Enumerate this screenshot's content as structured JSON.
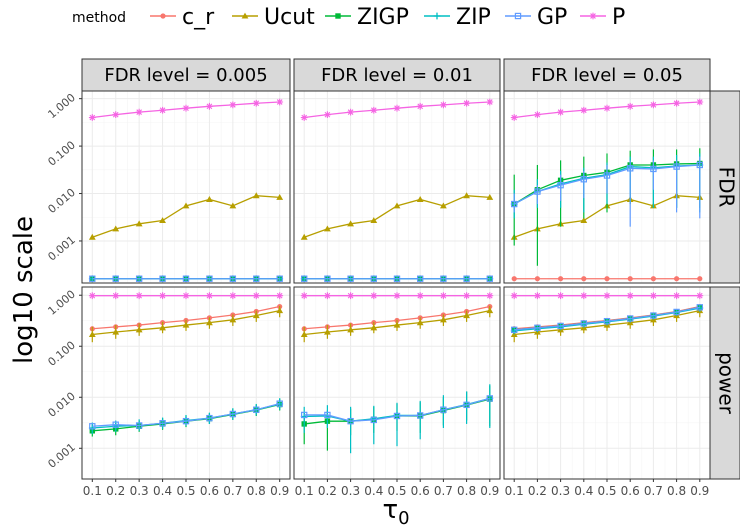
{
  "chart_data": {
    "type": "line",
    "ylabel": "log10 scale",
    "xlabel_base": "τ",
    "xlabel_sub": "0",
    "legend": {
      "title": "method",
      "position": "top"
    },
    "x": [
      0.1,
      0.2,
      0.3,
      0.4,
      0.5,
      0.6,
      0.7,
      0.8,
      0.9
    ],
    "x_tick_labels": [
      "0.1",
      "0.2",
      "0.3",
      "0.4",
      "0.5",
      "0.6",
      "0.7",
      "0.8",
      "0.9"
    ],
    "y_scale": "log10",
    "y_tick_labels": [
      "0.001",
      "0.010",
      "0.100",
      "1.000"
    ],
    "y_ticks": [
      0.001,
      0.01,
      0.1,
      1
    ],
    "row_strips": [
      "FDR",
      "power"
    ],
    "col_strips": [
      "FDR level = 0.005",
      "FDR level = 0.01",
      "FDR level = 0.05"
    ],
    "fdr_ylim": [
      0.00013,
      1.45
    ],
    "power_ylim": [
      0.00025,
      1.45
    ],
    "series": [
      {
        "name": "c_r",
        "color": "#F8766D",
        "marker": "circle"
      },
      {
        "name": "Ucut",
        "color": "#B79F00",
        "marker": "triangle"
      },
      {
        "name": "ZIGP",
        "color": "#00BA38",
        "marker": "square"
      },
      {
        "name": "ZIP",
        "color": "#00BFC4",
        "marker": "plus"
      },
      {
        "name": "GP",
        "color": "#619CFF",
        "marker": "square-open"
      },
      {
        "name": "P",
        "color": "#F564E3",
        "marker": "asterisk"
      }
    ],
    "panels": [
      {
        "row": "FDR",
        "col": "FDR level = 0.005",
        "series": {
          "c_r": {
            "values": [
              0.00016,
              0.00016,
              0.00016,
              0.00016,
              0.00016,
              0.00016,
              0.00016,
              0.00016,
              0.00016
            ]
          },
          "Ucut": {
            "values": [
              0.0012,
              0.0018,
              0.0023,
              0.0027,
              0.0055,
              0.0075,
              0.0055,
              0.009,
              0.0083
            ]
          },
          "ZIGP": {
            "values": [
              0.00016,
              0.00016,
              0.00016,
              0.00016,
              0.00016,
              0.00016,
              0.00016,
              0.00016,
              0.00016
            ]
          },
          "ZIP": {
            "values": [
              0.00016,
              0.00016,
              0.00016,
              0.00016,
              0.00016,
              0.00016,
              0.00016,
              0.00016,
              0.00016
            ]
          },
          "GP": {
            "values": [
              0.00016,
              0.00016,
              0.00016,
              0.00016,
              0.00016,
              0.00016,
              0.00016,
              0.00016,
              0.00016
            ]
          },
          "P": {
            "values": [
              0.4,
              0.46,
              0.52,
              0.57,
              0.63,
              0.69,
              0.74,
              0.8,
              0.85
            ]
          }
        }
      },
      {
        "row": "FDR",
        "col": "FDR level = 0.01",
        "series": {
          "c_r": {
            "values": [
              0.00016,
              0.00016,
              0.00016,
              0.00016,
              0.00016,
              0.00016,
              0.00016,
              0.00016,
              0.00016
            ]
          },
          "Ucut": {
            "values": [
              0.0012,
              0.0018,
              0.0023,
              0.0027,
              0.0055,
              0.0075,
              0.0055,
              0.009,
              0.0083
            ]
          },
          "ZIGP": {
            "values": [
              0.00016,
              0.00016,
              0.00016,
              0.00016,
              0.00016,
              0.00016,
              0.00016,
              0.00016,
              0.00016
            ]
          },
          "ZIP": {
            "values": [
              0.00016,
              0.00016,
              0.00016,
              0.00016,
              0.00016,
              0.00016,
              0.00016,
              0.00016,
              0.00016
            ]
          },
          "GP": {
            "values": [
              0.00016,
              0.00016,
              0.00016,
              0.00016,
              0.00016,
              0.00016,
              0.00016,
              0.00016,
              0.00016
            ]
          },
          "P": {
            "values": [
              0.4,
              0.46,
              0.52,
              0.57,
              0.63,
              0.69,
              0.74,
              0.8,
              0.85
            ]
          }
        }
      },
      {
        "row": "FDR",
        "col": "FDR level = 0.05",
        "series": {
          "c_r": {
            "values": [
              0.00016,
              0.00016,
              0.00016,
              0.00016,
              0.00016,
              0.00016,
              0.00016,
              0.00016,
              0.00016
            ]
          },
          "Ucut": {
            "values": [
              0.0012,
              0.0018,
              0.0023,
              0.0027,
              0.0055,
              0.0075,
              0.0055,
              0.009,
              0.0083
            ]
          },
          "ZIGP": {
            "values": [
              0.006,
              0.012,
              0.019,
              0.024,
              0.028,
              0.04,
              0.04,
              0.042,
              0.043
            ],
            "err": [
              [
                0.0008,
                0.025
              ],
              [
                0.0003,
                0.04
              ],
              [
                0.002,
                0.05
              ],
              [
                0.003,
                0.06
              ],
              [
                0.004,
                0.07
              ],
              [
                0.006,
                0.08
              ],
              [
                0.005,
                0.085
              ],
              [
                0.005,
                0.085
              ],
              [
                0.005,
                0.09
              ]
            ]
          },
          "ZIP": {
            "values": [
              0.006,
              0.011,
              0.016,
              0.021,
              0.025,
              0.037,
              0.035,
              0.038,
              0.04
            ],
            "err": [
              [
                0.003,
                0.012
              ],
              [
                0.005,
                0.02
              ],
              [
                0.005,
                0.03
              ],
              [
                0.004,
                0.035
              ],
              [
                0.006,
                0.045
              ],
              [
                0.006,
                0.06
              ],
              [
                0.005,
                0.06
              ],
              [
                0.005,
                0.065
              ],
              [
                0.004,
                0.07
              ]
            ]
          },
          "GP": {
            "values": [
              0.006,
              0.011,
              0.015,
              0.02,
              0.024,
              0.034,
              0.033,
              0.037,
              0.04
            ],
            "err": [
              [
                0.004,
                0.01
              ],
              [
                0.006,
                0.015
              ],
              [
                0.007,
                0.025
              ],
              [
                0.008,
                0.03
              ],
              [
                0.01,
                0.04
              ],
              [
                0.002,
                0.05
              ],
              [
                0.012,
                0.05
              ],
              [
                0.004,
                0.05
              ],
              [
                0.003,
                0.06
              ]
            ]
          },
          "P": {
            "values": [
              0.4,
              0.46,
              0.52,
              0.57,
              0.63,
              0.69,
              0.74,
              0.8,
              0.85
            ]
          }
        }
      },
      {
        "row": "power",
        "col": "FDR level = 0.005",
        "series": {
          "c_r": {
            "values": [
              0.22,
              0.24,
              0.26,
              0.29,
              0.32,
              0.36,
              0.41,
              0.48,
              0.6
            ]
          },
          "Ucut": {
            "values": [
              0.17,
              0.19,
              0.21,
              0.23,
              0.26,
              0.29,
              0.33,
              0.4,
              0.5
            ],
            "err": [
              [
                0.12,
                0.24
              ],
              [
                0.14,
                0.26
              ],
              [
                0.16,
                0.28
              ],
              [
                0.18,
                0.3
              ],
              [
                0.2,
                0.33
              ],
              [
                0.22,
                0.37
              ],
              [
                0.25,
                0.42
              ],
              [
                0.3,
                0.5
              ],
              [
                0.37,
                0.62
              ]
            ]
          },
          "ZIGP": {
            "values": [
              0.0022,
              0.0024,
              0.0027,
              0.003,
              0.0034,
              0.0038,
              0.0046,
              0.0056,
              0.0072
            ],
            "err": [
              [
                0.0017,
                0.0028
              ],
              [
                0.0018,
                0.0031
              ],
              [
                0.0021,
                0.0035
              ],
              [
                0.0023,
                0.0039
              ],
              [
                0.0026,
                0.0044
              ],
              [
                0.003,
                0.0049
              ],
              [
                0.0036,
                0.006
              ],
              [
                0.0043,
                0.0072
              ],
              [
                0.0055,
                0.0094
              ]
            ]
          },
          "ZIP": {
            "values": [
              0.0025,
              0.0027,
              0.0028,
              0.0031,
              0.0035,
              0.0039,
              0.0047,
              0.0057,
              0.0074
            ],
            "err": [
              [
                0.0019,
                0.0032
              ],
              [
                0.0021,
                0.0035
              ],
              [
                0.0022,
                0.0037
              ],
              [
                0.0024,
                0.004
              ],
              [
                0.0027,
                0.0045
              ],
              [
                0.003,
                0.005
              ],
              [
                0.0036,
                0.0061
              ],
              [
                0.0044,
                0.0074
              ],
              [
                0.0057,
                0.0096
              ]
            ]
          },
          "GP": {
            "values": [
              0.0027,
              0.0029,
              0.0028,
              0.0031,
              0.0034,
              0.0039,
              0.0047,
              0.0057,
              0.0075
            ]
          },
          "P": {
            "values": [
              0.98,
              0.98,
              0.98,
              0.98,
              0.98,
              0.98,
              0.98,
              0.98,
              0.98
            ]
          }
        }
      },
      {
        "row": "power",
        "col": "FDR level = 0.01",
        "series": {
          "c_r": {
            "values": [
              0.22,
              0.24,
              0.26,
              0.29,
              0.32,
              0.36,
              0.41,
              0.48,
              0.6
            ]
          },
          "Ucut": {
            "values": [
              0.17,
              0.19,
              0.21,
              0.23,
              0.26,
              0.29,
              0.33,
              0.4,
              0.5
            ],
            "err": [
              [
                0.12,
                0.24
              ],
              [
                0.14,
                0.26
              ],
              [
                0.16,
                0.28
              ],
              [
                0.18,
                0.3
              ],
              [
                0.2,
                0.33
              ],
              [
                0.22,
                0.37
              ],
              [
                0.25,
                0.42
              ],
              [
                0.3,
                0.5
              ],
              [
                0.37,
                0.62
              ]
            ]
          },
          "ZIGP": {
            "values": [
              0.003,
              0.0034,
              0.0034,
              0.0037,
              0.0043,
              0.0043,
              0.0055,
              0.007,
              0.0092
            ],
            "err": [
              [
                0.0012,
                0.005
              ],
              [
                0.0009,
                0.0055
              ],
              [
                0.0018,
                0.006
              ],
              [
                0.002,
                0.0065
              ],
              [
                0.0022,
                0.0075
              ],
              [
                0.002,
                0.008
              ],
              [
                0.0028,
                0.01
              ],
              [
                0.0035,
                0.013
              ],
              [
                0.0027,
                0.017
              ]
            ]
          },
          "ZIP": {
            "values": [
              0.0042,
              0.0043,
              0.0034,
              0.0038,
              0.0044,
              0.0044,
              0.0057,
              0.0072,
              0.0095
            ],
            "err": [
              [
                0.002,
                0.0065
              ],
              [
                0.0025,
                0.007
              ],
              [
                0.0008,
                0.0065
              ],
              [
                0.0012,
                0.0068
              ],
              [
                0.0011,
                0.0078
              ],
              [
                0.0015,
                0.0085
              ],
              [
                0.0025,
                0.011
              ],
              [
                0.003,
                0.013
              ],
              [
                0.0025,
                0.018
              ]
            ]
          },
          "GP": {
            "values": [
              0.0045,
              0.0045,
              0.0034,
              0.0036,
              0.0043,
              0.0044,
              0.0057,
              0.0071,
              0.0095
            ]
          },
          "P": {
            "values": [
              0.98,
              0.98,
              0.98,
              0.98,
              0.98,
              0.98,
              0.98,
              0.98,
              0.98
            ]
          }
        }
      },
      {
        "row": "power",
        "col": "FDR level = 0.05",
        "series": {
          "c_r": {
            "values": [
              0.22,
              0.24,
              0.26,
              0.29,
              0.32,
              0.36,
              0.41,
              0.48,
              0.6
            ]
          },
          "Ucut": {
            "values": [
              0.17,
              0.19,
              0.21,
              0.23,
              0.26,
              0.29,
              0.33,
              0.4,
              0.5
            ],
            "err": [
              [
                0.12,
                0.24
              ],
              [
                0.14,
                0.26
              ],
              [
                0.16,
                0.28
              ],
              [
                0.18,
                0.3
              ],
              [
                0.2,
                0.33
              ],
              [
                0.22,
                0.37
              ],
              [
                0.25,
                0.42
              ],
              [
                0.3,
                0.5
              ],
              [
                0.37,
                0.62
              ]
            ]
          },
          "ZIGP": {
            "values": [
              0.21,
              0.23,
              0.25,
              0.28,
              0.31,
              0.35,
              0.4,
              0.47,
              0.58
            ]
          },
          "ZIP": {
            "values": [
              0.2,
              0.22,
              0.24,
              0.27,
              0.3,
              0.34,
              0.39,
              0.46,
              0.56
            ]
          },
          "GP": {
            "values": [
              0.21,
              0.23,
              0.25,
              0.28,
              0.31,
              0.35,
              0.4,
              0.47,
              0.58
            ]
          },
          "P": {
            "values": [
              0.98,
              0.98,
              0.98,
              0.98,
              0.98,
              0.98,
              0.98,
              0.98,
              0.98
            ]
          }
        }
      }
    ]
  }
}
